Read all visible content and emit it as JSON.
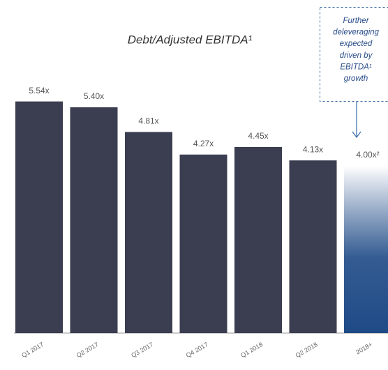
{
  "chart_data": {
    "type": "bar",
    "title": "Debt/Adjusted EBITDA¹",
    "categories": [
      "Q1 2017",
      "Q2 2017",
      "Q3 2017",
      "Q4 2017",
      "Q1 2018",
      "Q2 2018",
      "2018+"
    ],
    "values": [
      5.54,
      5.4,
      4.81,
      4.27,
      4.45,
      4.13,
      4.0
    ],
    "value_labels": [
      "5.54x",
      "5.40x",
      "4.81x",
      "4.27x",
      "4.45x",
      "4.13x",
      "4.00x²"
    ],
    "colors": [
      "#3b3d50",
      "#3b3d50",
      "#3b3d50",
      "#3b3d50",
      "#3b3d50",
      "#3b3d50",
      "#1e4a86"
    ],
    "annotation": [
      "Further",
      "deleveraging",
      "expected",
      "driven by",
      "EBITDA¹",
      "growth"
    ]
  }
}
